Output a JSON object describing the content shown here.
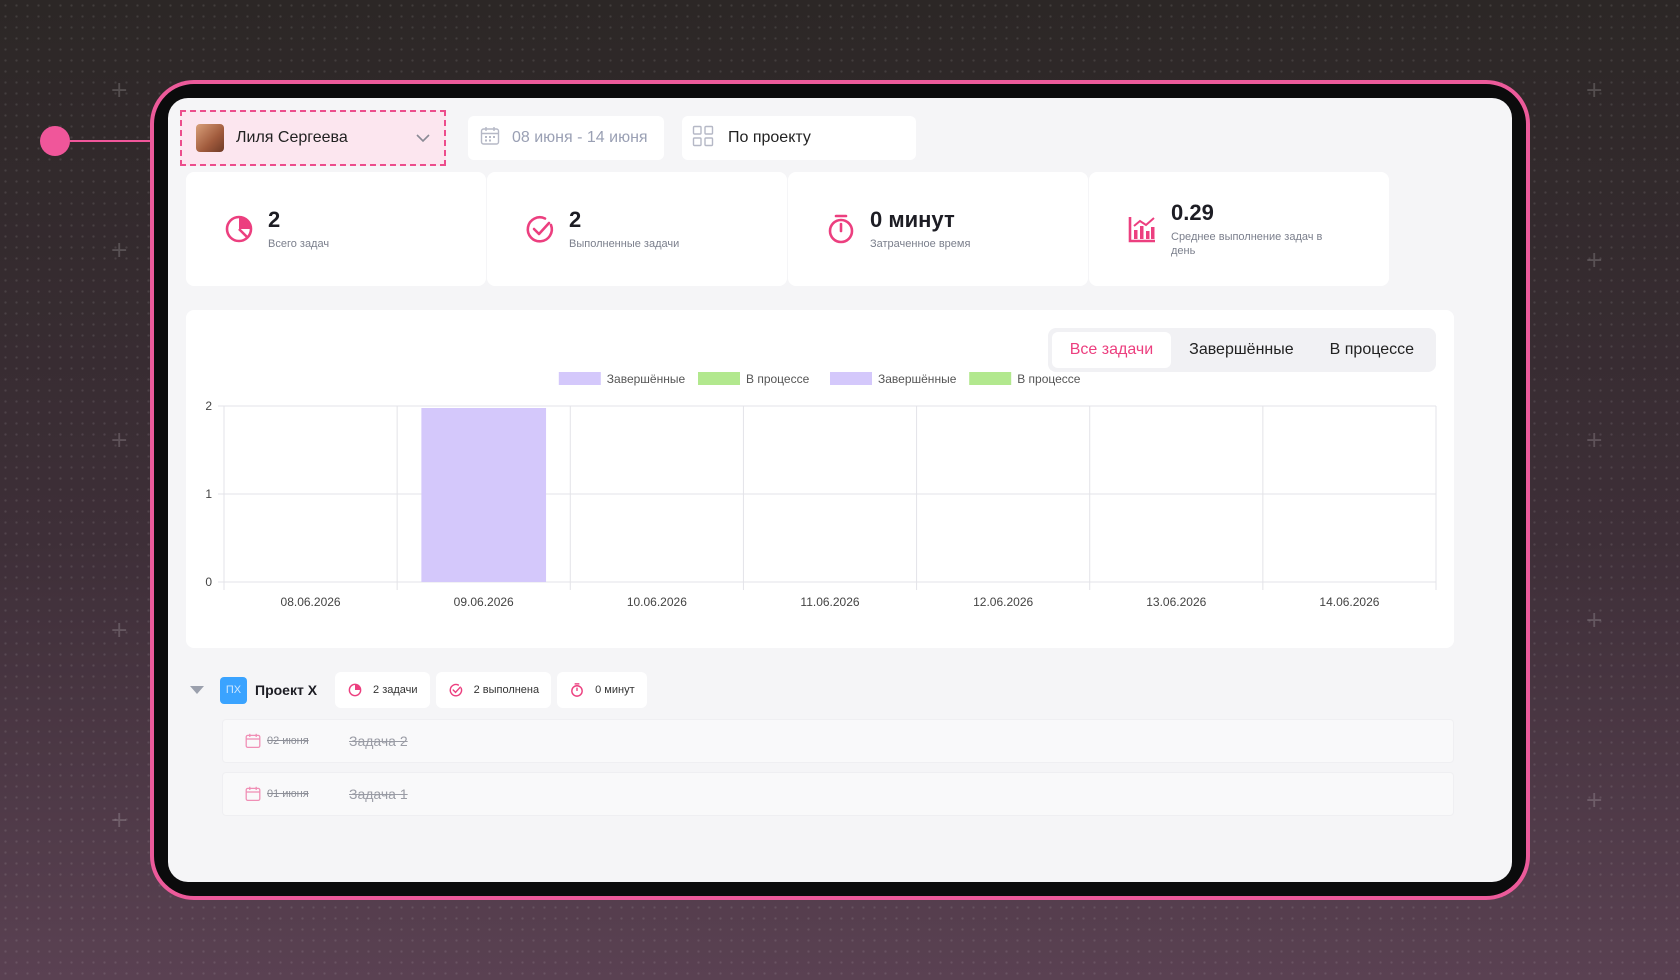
{
  "filters": {
    "user_name": "Лиля Сергеева",
    "date_range": "08 июня - 14 июня",
    "group_by": "По проекту"
  },
  "stats": [
    {
      "value": "2",
      "label": "Всего задач",
      "icon": "pie-chart-icon"
    },
    {
      "value": "2",
      "label": "Выполненные задачи",
      "icon": "check-circle-icon"
    },
    {
      "value": "0 минут",
      "label": "Затраченное время",
      "icon": "stopwatch-icon"
    },
    {
      "value": "0.29",
      "label": "Среднее выполнение задач в день",
      "icon": "bar-chart-icon"
    }
  ],
  "tabs": [
    "Все задачи",
    "Завершённые",
    "В процессе"
  ],
  "active_tab": "Все задачи",
  "colors": {
    "accent": "#ec3f7f",
    "completed": "#d4c8fb",
    "in_progress": "#b2e88e"
  },
  "chart_data": {
    "type": "bar",
    "categories": [
      "08.06.2026",
      "09.06.2026",
      "10.06.2026",
      "11.06.2026",
      "12.06.2026",
      "13.06.2026",
      "14.06.2026"
    ],
    "series": [
      {
        "name": "Завершённые",
        "values": [
          0,
          2,
          0,
          0,
          0,
          0,
          0
        ],
        "color": "#d4c8fb"
      },
      {
        "name": "В процессе",
        "values": [
          0,
          0,
          0,
          0,
          0,
          0,
          0
        ],
        "color": "#b2e88e"
      }
    ],
    "legend": [
      "Завершённые",
      "В процессе",
      "Завершённые",
      "В процессе"
    ],
    "y_ticks": [
      "0",
      "1",
      "2"
    ],
    "ylim": [
      0,
      2
    ],
    "grid": true,
    "legend_position": "top-center"
  },
  "project": {
    "badge": "ПХ",
    "name": "Проект Х",
    "tasks_count": "2 задачи",
    "done_count": "2 выполнена",
    "time": "0 минут",
    "tasks": [
      {
        "date": "02 июня",
        "name": "Задача 2"
      },
      {
        "date": "01 июня",
        "name": "Задача 1"
      }
    ]
  }
}
